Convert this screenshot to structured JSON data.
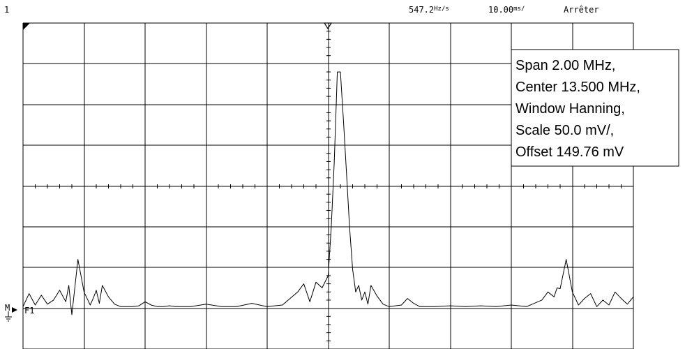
{
  "status_bar": {
    "channel": "1",
    "frequency": "547.2",
    "frequency_unit": "Hz/s",
    "timebase": "10.00",
    "timebase_unit": "ms/",
    "run_state": "Arrêter"
  },
  "info_box": {
    "lines": [
      "Span 2.00 MHz,",
      "Center 13.500 MHz,",
      "Window Hanning,",
      "Scale 50.0 mV/,",
      "Offset 149.76 mV"
    ]
  },
  "channel_label": {
    "text": "F1",
    "marker": "M"
  },
  "chart_data": {
    "type": "line",
    "title": "",
    "xlabel": "",
    "ylabel": "",
    "xlim": [
      12.5,
      14.5
    ],
    "ylim": [
      -50,
      350
    ],
    "x_unit": "MHz",
    "y_unit": "mV",
    "grid": true,
    "divisions": {
      "x": 10,
      "y": 8
    },
    "series": [
      {
        "x": [
          12.5,
          12.52,
          12.54,
          12.56,
          12.58,
          12.6,
          12.62,
          12.64,
          12.65,
          12.66,
          12.68,
          12.7,
          12.72,
          12.73,
          12.74,
          12.75,
          12.76,
          12.78,
          12.8,
          12.82,
          12.84,
          12.86,
          12.88,
          12.9,
          12.92,
          12.94,
          12.96,
          12.98,
          13.0,
          13.05,
          13.1,
          13.15,
          13.2,
          13.25,
          13.3,
          13.35,
          13.4,
          13.42,
          13.44,
          13.46,
          13.48,
          13.5,
          13.51,
          13.52,
          13.53,
          13.54,
          13.55,
          13.56,
          13.57,
          13.58,
          13.59,
          13.6,
          13.61,
          13.62,
          13.63,
          13.64,
          13.66,
          13.68,
          13.7,
          13.72,
          13.74,
          13.76,
          13.78,
          13.8,
          13.85,
          13.9,
          13.95,
          14.0,
          14.05,
          14.1,
          14.15,
          14.2,
          14.22,
          14.24,
          14.25,
          14.26,
          14.28,
          14.3,
          14.32,
          14.34,
          14.36,
          14.38,
          14.4,
          14.42,
          14.44,
          14.46,
          14.48,
          14.5
        ],
        "y": [
          2,
          18,
          4,
          16,
          5,
          10,
          22,
          8,
          28,
          -8,
          60,
          20,
          4,
          12,
          22,
          6,
          28,
          14,
          5,
          2,
          2,
          2,
          3,
          8,
          4,
          2,
          2,
          3,
          2,
          2,
          5,
          2,
          2,
          6,
          2,
          4,
          20,
          30,
          8,
          32,
          25,
          40,
          100,
          180,
          290,
          290,
          230,
          165,
          100,
          48,
          20,
          28,
          10,
          20,
          5,
          28,
          15,
          5,
          2,
          3,
          4,
          12,
          6,
          2,
          2,
          3,
          2,
          3,
          2,
          4,
          2,
          10,
          20,
          14,
          25,
          24,
          60,
          20,
          4,
          12,
          18,
          2,
          10,
          4,
          20,
          12,
          5,
          14
        ]
      }
    ],
    "annotations": [
      "Span 2.00 MHz,",
      "Center 13.500 MHz,",
      "Window Hanning,",
      "Scale 50.0 mV/,",
      "Offset 149.76 mV"
    ]
  }
}
